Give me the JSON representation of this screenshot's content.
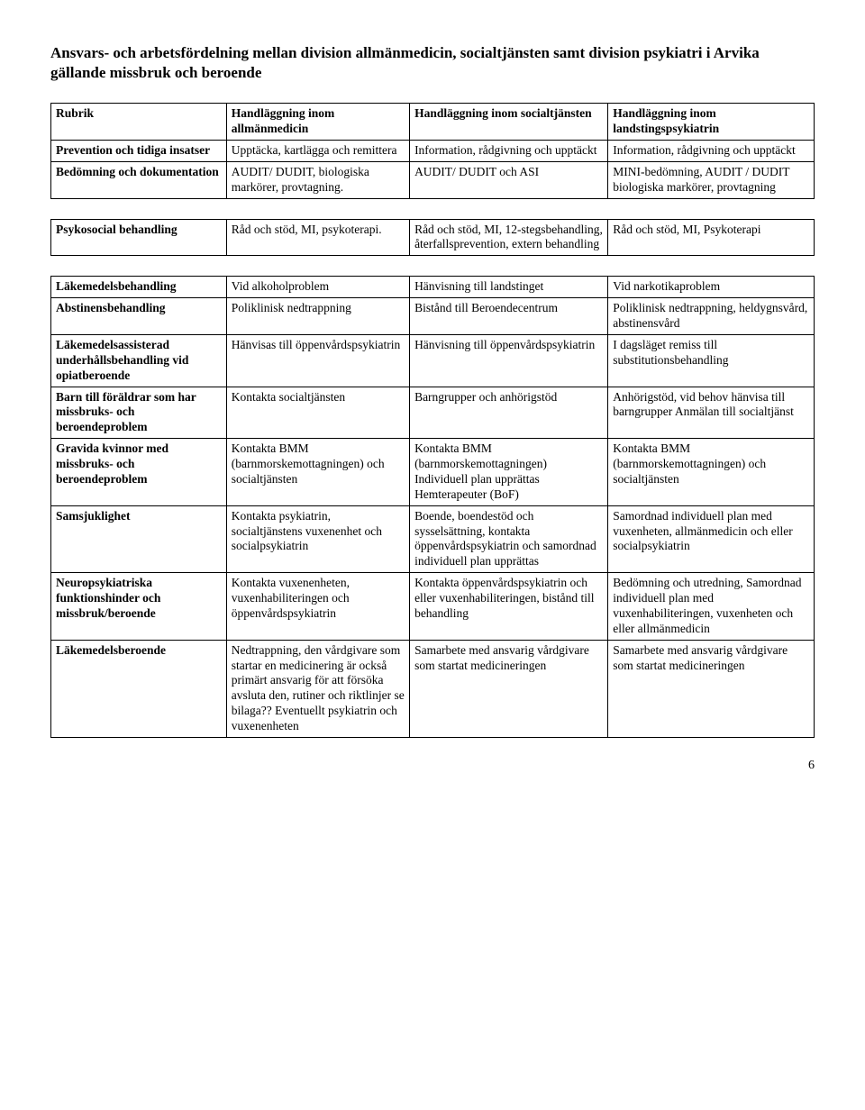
{
  "title": "Ansvars- och arbetsfördelning mellan division allmänmedicin, socialtjänsten samt division psykiatri i Arvika gällande missbruk och beroende",
  "header": {
    "rubrik": "Rubrik",
    "col1": "Handläggning inom allmänmedicin",
    "col2": "Handläggning inom socialtjänsten",
    "col3": "Handläggning inom landstingspsykiatrin"
  },
  "t1": {
    "r1": {
      "label": "Prevention och tidiga insatser",
      "c1": "Upptäcka, kartlägga och remittera",
      "c2": "Information, rådgivning och upptäckt",
      "c3": "Information, rådgivning och upptäckt"
    },
    "r2": {
      "label": "Bedömning och dokumentation",
      "c1": "AUDIT/ DUDIT, biologiska markörer, provtagning.",
      "c2": "AUDIT/ DUDIT och ASI",
      "c3": "MINI-bedömning, AUDIT / DUDIT biologiska markörer, provtagning"
    }
  },
  "t2": {
    "r1": {
      "label": "Psykosocial behandling",
      "c1": "Råd och stöd, MI, psykoterapi.",
      "c2": "Råd och stöd, MI, 12-stegsbehandling, återfallsprevention, extern behandling",
      "c3": "Råd och stöd, MI, Psykoterapi"
    }
  },
  "t3": {
    "r1": {
      "label": "Läkemedelsbehandling",
      "c1": "Vid alkoholproblem",
      "c2": "Hänvisning till landstinget",
      "c3": "Vid narkotikaproblem"
    },
    "r2": {
      "label": "Abstinensbehandling",
      "c1": "Poliklinisk nedtrappning",
      "c2": "Bistånd till Beroendecentrum",
      "c3": "Poliklinisk nedtrappning, heldygnsvård, abstinensvård"
    },
    "r3": {
      "label": "Läkemedelsassisterad underhållsbehandling vid opiatberoende",
      "c1": "Hänvisas till öppenvårdspsykiatrin",
      "c2": "Hänvisning till öppenvårdspsykiatrin",
      "c3": "I dagsläget remiss till substitutionsbehandling"
    },
    "r4": {
      "label": "Barn till föräldrar som har missbruks- och beroendeproblem",
      "c1": "Kontakta socialtjänsten",
      "c2": "Barngrupper och anhörigstöd",
      "c3": "Anhörigstöd, vid behov hänvisa till barngrupper Anmälan till socialtjänst"
    },
    "r5": {
      "label": "Gravida kvinnor med missbruks- och beroendeproblem",
      "c1": "Kontakta BMM  (barnmorskemottagningen) och socialtjänsten",
      "c2": "Kontakta BMM (barnmorskemottagningen)     Individuell plan upprättas Hemterapeuter (BoF)",
      "c3": "Kontakta BMM (barnmorskemottagningen) och socialtjänsten"
    },
    "r6": {
      "label": "Samsjuklighet",
      "c1": "Kontakta psykiatrin, socialtjänstens vuxenenhet och socialpsykiatrin",
      "c2": "Boende, boendestöd och sysselsättning, kontakta öppenvårdspsykiatrin och samordnad individuell plan upprättas",
      "c3": "Samordnad individuell plan med vuxenheten, allmänmedicin och eller socialpsykiatrin"
    },
    "r7": {
      "label": "Neuropsykiatriska funktionshinder och missbruk/beroende",
      "c1": "Kontakta vuxenenheten, vuxenhabiliteringen och öppenvårdspsykiatrin",
      "c2": "Kontakta öppenvårdspsykiatrin och eller vuxenhabiliteringen, bistånd till behandling",
      "c3": "Bedömning och utredning, Samordnad individuell plan med vuxenhabiliteringen, vuxenheten och eller allmänmedicin"
    },
    "r8": {
      "label": "Läkemedelsberoende",
      "c1": "Nedtrappning, den vårdgivare som startar en medicinering är också primärt ansvarig för att försöka avsluta den, rutiner och riktlinjer se bilaga?? Eventuellt psykiatrin och vuxenenheten",
      "c2": "Samarbete med ansvarig vårdgivare som startat medicineringen",
      "c3": "Samarbete med ansvarig vårdgivare som startat medicineringen"
    }
  },
  "pagenum": "6"
}
